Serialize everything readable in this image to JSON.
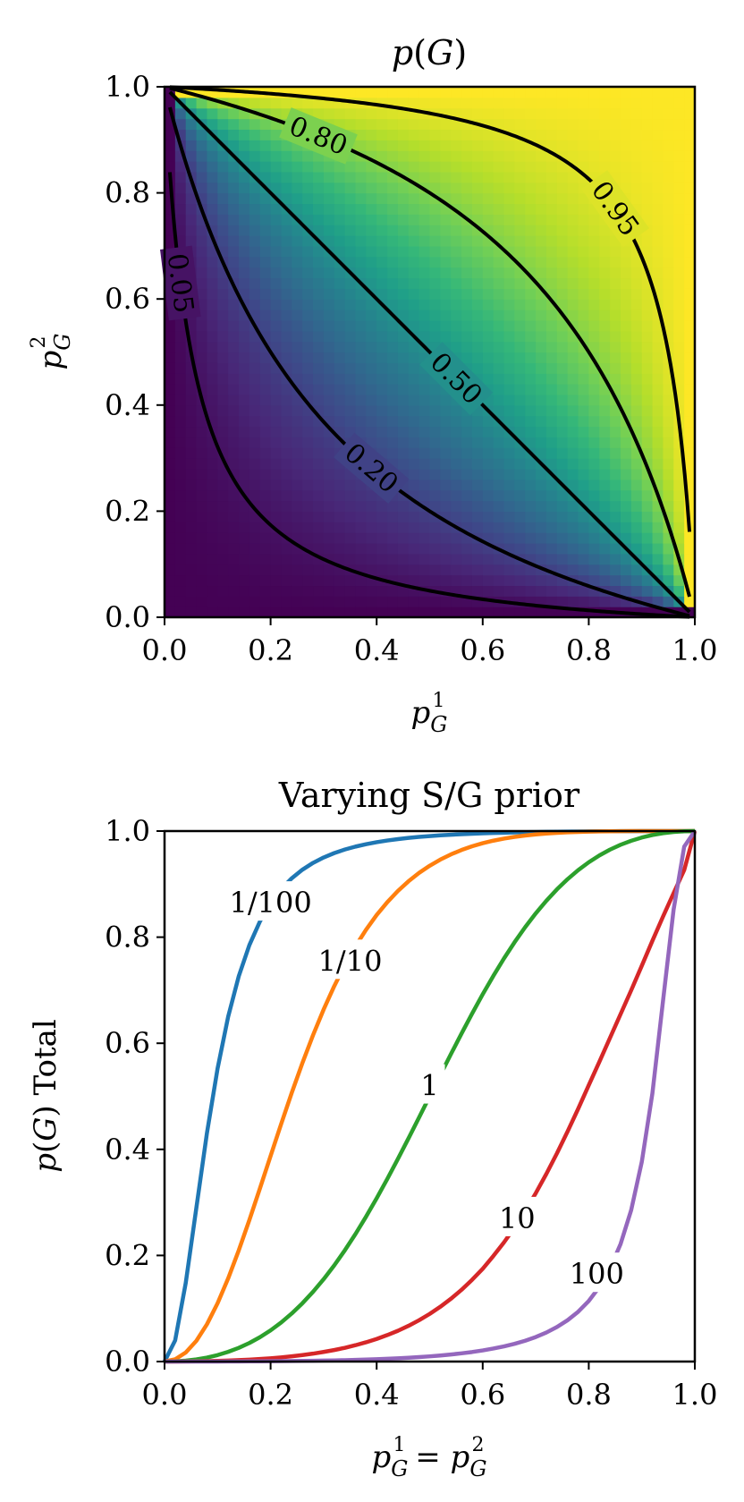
{
  "chart_data": [
    {
      "type": "heatmap",
      "title_main": "p",
      "title_arg": "G",
      "xlabel_base": "p",
      "xlabel_sub": "G",
      "xlabel_sup": "1",
      "ylabel_base": "p",
      "ylabel_sub": "G",
      "ylabel_sup": "2",
      "xlim": [
        0,
        1
      ],
      "ylim": [
        0,
        1
      ],
      "x_ticks": [
        0.0,
        0.2,
        0.4,
        0.6,
        0.8,
        1.0
      ],
      "y_ticks": [
        0.0,
        0.2,
        0.4,
        0.6,
        0.8,
        1.0
      ],
      "x_tick_labels": [
        "0.0",
        "0.2",
        "0.4",
        "0.6",
        "0.8",
        "1.0"
      ],
      "y_tick_labels": [
        "0.0",
        "0.2",
        "0.4",
        "0.6",
        "0.8",
        "1.0"
      ],
      "colormap": "viridis",
      "value_range": [
        0,
        1
      ],
      "formula": "p1*p2/(p1*p2+(1-p1)*(1-p2))",
      "contour_levels": [
        0.05,
        0.2,
        0.5,
        0.8,
        0.95
      ],
      "contour_labels": [
        "0.05",
        "0.20",
        "0.50",
        "0.80",
        "0.95"
      ],
      "contour_label_points": [
        [
          0.03,
          0.65
        ],
        [
          0.39,
          0.29
        ],
        [
          0.55,
          0.45
        ],
        [
          0.29,
          0.9
        ],
        [
          0.85,
          0.75
        ]
      ],
      "contour_color": "#000000"
    },
    {
      "type": "line",
      "title": "Varying S/G prior",
      "xlabel_base": "p",
      "xlabel_sub": "G",
      "xlabel_sup1": "1",
      "xlabel_eq": " = ",
      "xlabel_sup2": "2",
      "ylabel_base": "p",
      "ylabel_arg": "G",
      "ylabel_suffix": " Total",
      "xlim": [
        0,
        1
      ],
      "ylim": [
        0,
        1
      ],
      "x_ticks": [
        0.0,
        0.2,
        0.4,
        0.6,
        0.8,
        1.0
      ],
      "y_ticks": [
        0.0,
        0.2,
        0.4,
        0.6,
        0.8,
        1.0
      ],
      "x_tick_labels": [
        "0.0",
        "0.2",
        "0.4",
        "0.6",
        "0.8",
        "1.0"
      ],
      "y_tick_labels": [
        "0.0",
        "0.2",
        "0.4",
        "0.6",
        "0.8",
        "1.0"
      ],
      "x": [
        0.0,
        0.02,
        0.04,
        0.06,
        0.08,
        0.1,
        0.12,
        0.14,
        0.16,
        0.18,
        0.2,
        0.22,
        0.24,
        0.26,
        0.28,
        0.3,
        0.32,
        0.34,
        0.36,
        0.38,
        0.4,
        0.42,
        0.44,
        0.46,
        0.48,
        0.5,
        0.52,
        0.54,
        0.56,
        0.58,
        0.6,
        0.62,
        0.64,
        0.66,
        0.68,
        0.7,
        0.72,
        0.74,
        0.76,
        0.78,
        0.8,
        0.82,
        0.84,
        0.86,
        0.88,
        0.9,
        0.92,
        0.94,
        0.96,
        0.98,
        1.0
      ],
      "series": [
        {
          "name": "1/100",
          "color": "#1f77b4",
          "values": [
            0.0,
            0.0398,
            0.1483,
            0.2897,
            0.4309,
            0.5523,
            0.6502,
            0.7265,
            0.7851,
            0.8299,
            0.8642,
            0.8906,
            0.9111,
            0.9272,
            0.94,
            0.9502,
            0.9585,
            0.9652,
            0.9707,
            0.9752,
            0.979,
            0.9822,
            0.9848,
            0.9871,
            0.989,
            0.9906,
            0.9919,
            0.9931,
            0.9941,
            0.995,
            0.9957,
            0.9964,
            0.9969,
            0.9974,
            0.9978,
            0.9982,
            0.9985,
            0.9988,
            0.999,
            0.9992,
            0.9994,
            0.9995,
            0.9996,
            0.9997,
            0.9998,
            0.9999,
            0.9999,
            1.0,
            1.0,
            1.0,
            1.0
          ],
          "label_at": [
            0.2,
            0.865
          ]
        },
        {
          "name": "1/10",
          "color": "#ff7f0e",
          "values": [
            0.0,
            0.0042,
            0.0171,
            0.039,
            0.0703,
            0.1098,
            0.1568,
            0.2097,
            0.2669,
            0.3267,
            0.3876,
            0.4481,
            0.5069,
            0.5628,
            0.6152,
            0.6636,
            0.7077,
            0.7473,
            0.7827,
            0.814,
            0.8417,
            0.8659,
            0.887,
            0.9053,
            0.9211,
            0.9346,
            0.9462,
            0.956,
            0.9643,
            0.9713,
            0.9771,
            0.9819,
            0.9858,
            0.989,
            0.9916,
            0.9936,
            0.9953,
            0.9966,
            0.9976,
            0.9984,
            0.999,
            0.9994,
            0.9996,
            0.9998,
            0.9999,
            1.0,
            1.0,
            1.0,
            1.0,
            1.0,
            1.0
          ],
          "label_at": [
            0.35,
            0.755
          ]
        },
        {
          "name": "1",
          "color": "#2ca02c",
          "values": [
            0.0,
            0.0004,
            0.0017,
            0.0041,
            0.0075,
            0.0122,
            0.0183,
            0.0258,
            0.035,
            0.046,
            0.0588,
            0.0737,
            0.0907,
            0.1099,
            0.1314,
            0.1552,
            0.1813,
            0.2097,
            0.2403,
            0.2731,
            0.3077,
            0.3441,
            0.3818,
            0.4206,
            0.4601,
            0.5,
            0.5399,
            0.5794,
            0.6182,
            0.6559,
            0.6923,
            0.7269,
            0.7597,
            0.7903,
            0.8187,
            0.8448,
            0.8686,
            0.8901,
            0.9093,
            0.9263,
            0.9412,
            0.954,
            0.965,
            0.9742,
            0.9817,
            0.9878,
            0.9925,
            0.9959,
            0.9983,
            0.9996,
            1.0
          ],
          "label_at": [
            0.5,
            0.52
          ]
        },
        {
          "name": "10",
          "color": "#d62728",
          "values": [
            0.0,
            0.0,
            0.0002,
            0.0004,
            0.0008,
            0.0012,
            0.0019,
            0.0027,
            0.0036,
            0.0048,
            0.0062,
            0.0079,
            0.0099,
            0.0122,
            0.0149,
            0.0181,
            0.0217,
            0.0259,
            0.0308,
            0.0363,
            0.0426,
            0.0499,
            0.058,
            0.0673,
            0.0779,
            0.0898,
            0.1032,
            0.1183,
            0.1352,
            0.1541,
            0.1748,
            0.1989,
            0.2245,
            0.2527,
            0.2837,
            0.3173,
            0.3537,
            0.3925,
            0.4336,
            0.4764,
            0.5209,
            0.565,
            0.61,
            0.6549,
            0.6998,
            0.7461,
            0.7931,
            0.8387,
            0.883,
            0.9266,
            1.0
          ],
          "label_at": [
            0.665,
            0.27
          ]
        },
        {
          "name": "100",
          "color": "#9467bd",
          "values": [
            0.0,
            0.0,
            0.0,
            0.0,
            0.0001,
            0.0001,
            0.0002,
            0.0003,
            0.0004,
            0.0005,
            0.0006,
            0.0008,
            0.001,
            0.0012,
            0.0015,
            0.0018,
            0.0022,
            0.0026,
            0.0032,
            0.0038,
            0.0044,
            0.0052,
            0.0061,
            0.0072,
            0.0084,
            0.0098,
            0.0114,
            0.0133,
            0.0155,
            0.018,
            0.021,
            0.0245,
            0.0286,
            0.0334,
            0.0392,
            0.0462,
            0.0547,
            0.0651,
            0.0779,
            0.0939,
            0.1142,
            0.1405,
            0.1751,
            0.2216,
            0.2855,
            0.3764,
            0.5055,
            0.6796,
            0.852,
            0.9707,
            1.0
          ],
          "label_at": [
            0.815,
            0.165
          ]
        }
      ]
    }
  ]
}
